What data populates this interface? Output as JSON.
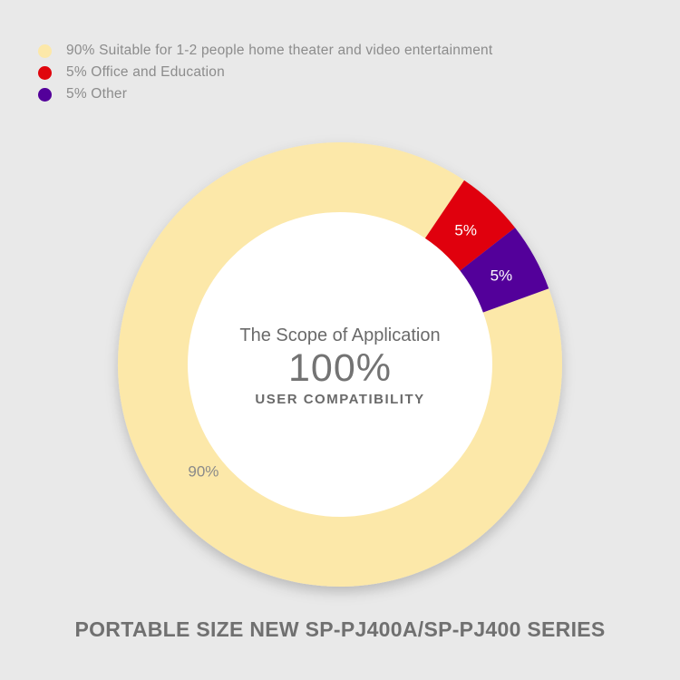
{
  "chart_data": {
    "type": "pie",
    "variant": "donut",
    "series": [
      {
        "label": "90% Suitable for 1-2 people home theater and video entertainment",
        "value": 90,
        "display": "90%",
        "color": "#fce8a9"
      },
      {
        "label": "5% Office and Education",
        "value": 5,
        "display": "5%",
        "color": "#e0060d"
      },
      {
        "label": "5% Other",
        "value": 5,
        "display": "5%",
        "color": "#53009a"
      }
    ],
    "legend_position": "top-left",
    "center_text": {
      "title": "The Scope of Application",
      "big": "100%",
      "sub": "USER COMPATIBILITY"
    }
  },
  "footer": "PORTABLE SIZE NEW SP-PJ400A/SP-PJ400 SERIES",
  "colors": {
    "background": "#e9e9e9",
    "center": "#ffffff"
  }
}
